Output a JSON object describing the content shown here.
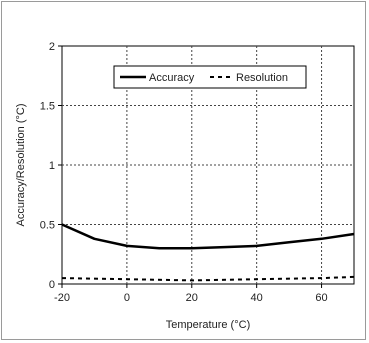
{
  "chart_data": {
    "type": "line",
    "xlabel": "Temperature (°C)",
    "ylabel": "Accuracy/Resolution (°C)",
    "xlim": [
      -20,
      70
    ],
    "ylim": [
      0,
      2
    ],
    "xticks": [
      -20,
      0,
      20,
      40,
      60
    ],
    "yticks": [
      0,
      0.5,
      1,
      1.5,
      2
    ],
    "ytick_labels": [
      "0",
      "0.5",
      "1",
      "1.5",
      "2"
    ],
    "grid": true,
    "legend_position": "top-right",
    "series": [
      {
        "name": "Accuracy",
        "style": "solid",
        "color": "#000000",
        "x": [
          -20,
          -10,
          0,
          10,
          20,
          30,
          40,
          50,
          60,
          70
        ],
        "y": [
          0.5,
          0.38,
          0.32,
          0.3,
          0.3,
          0.31,
          0.32,
          0.35,
          0.38,
          0.42
        ]
      },
      {
        "name": "Resolution",
        "style": "dashed",
        "color": "#000000",
        "x": [
          -20,
          0,
          20,
          40,
          60,
          70
        ],
        "y": [
          0.05,
          0.04,
          0.03,
          0.04,
          0.05,
          0.06
        ]
      }
    ]
  }
}
